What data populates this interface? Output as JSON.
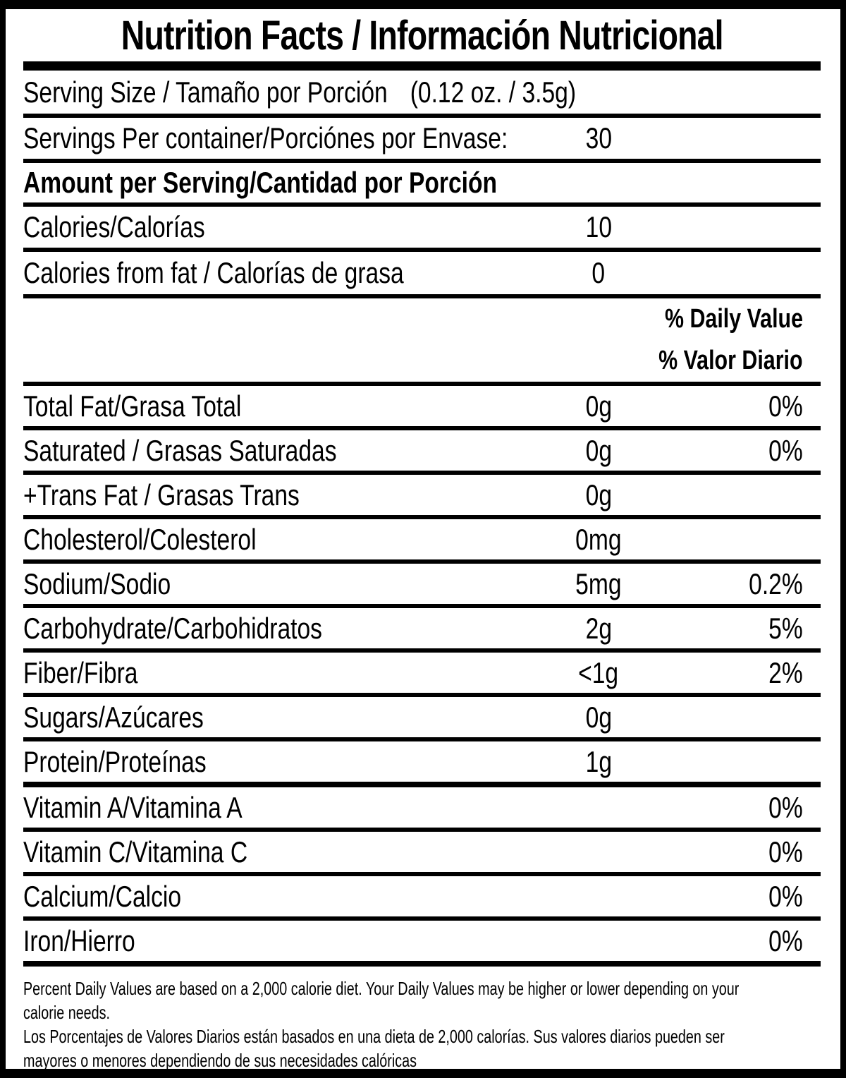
{
  "title": "Nutrition Facts / Información Nutricional",
  "serving_size": {
    "label": "Serving Size / Tamaño por Porción",
    "value": "(0.12 oz. / 3.5g)"
  },
  "servings_per_container": {
    "label": "Servings Per container/Porciónes por Envase:",
    "value": "30"
  },
  "amount_per_serving_heading": "Amount per Serving/Cantidad por Porción",
  "calories": {
    "label": "Calories/Calorías",
    "value": "10"
  },
  "calories_from_fat": {
    "label": "Calories from fat / Calorías de grasa",
    "value": "0"
  },
  "daily_value_header": {
    "en": "% Daily Value",
    "es": "% Valor Diario"
  },
  "nutrients": [
    {
      "label": "Total Fat/Grasa Total",
      "amount": "0g",
      "dv": "0%"
    },
    {
      "label": "Saturated / Grasas Saturadas",
      "amount": "0g",
      "dv": "0%"
    },
    {
      "label": "+Trans Fat / Grasas Trans",
      "amount": "0g",
      "dv": ""
    },
    {
      "label": "Cholesterol/Colesterol",
      "amount": "0mg",
      "dv": ""
    },
    {
      "label": "Sodium/Sodio",
      "amount": "5mg",
      "dv": "0.2%"
    },
    {
      "label": "Carbohydrate/Carbohidratos",
      "amount": "2g",
      "dv": "5%"
    },
    {
      "label": "Fiber/Fibra",
      "amount": "<1g",
      "dv": "2%"
    },
    {
      "label": "Sugars/Azúcares",
      "amount": "0g",
      "dv": ""
    },
    {
      "label": "Protein/Proteínas",
      "amount": "1g",
      "dv": ""
    },
    {
      "label": "Vitamin A/Vitamina A",
      "amount": "",
      "dv": "0%"
    },
    {
      "label": "Vitamin C/Vitamina C",
      "amount": "",
      "dv": "0%"
    },
    {
      "label": "Calcium/Calcio",
      "amount": "",
      "dv": "0%"
    },
    {
      "label": "Iron/Hierro",
      "amount": "",
      "dv": "0%"
    }
  ],
  "footnote": {
    "en_lines": [
      "Percent Daily Values are based on a 2,000 calorie diet. Your Daily Values may be higher or lower depending on your",
      "calorie needs."
    ],
    "es_lines": [
      "Los Porcentajes de Valores Diarios están basados en una dieta de 2,000 calorías. Sus valores diarios pueden ser",
      "mayores o menores dependiendo de sus necesidades calóricas"
    ]
  }
}
